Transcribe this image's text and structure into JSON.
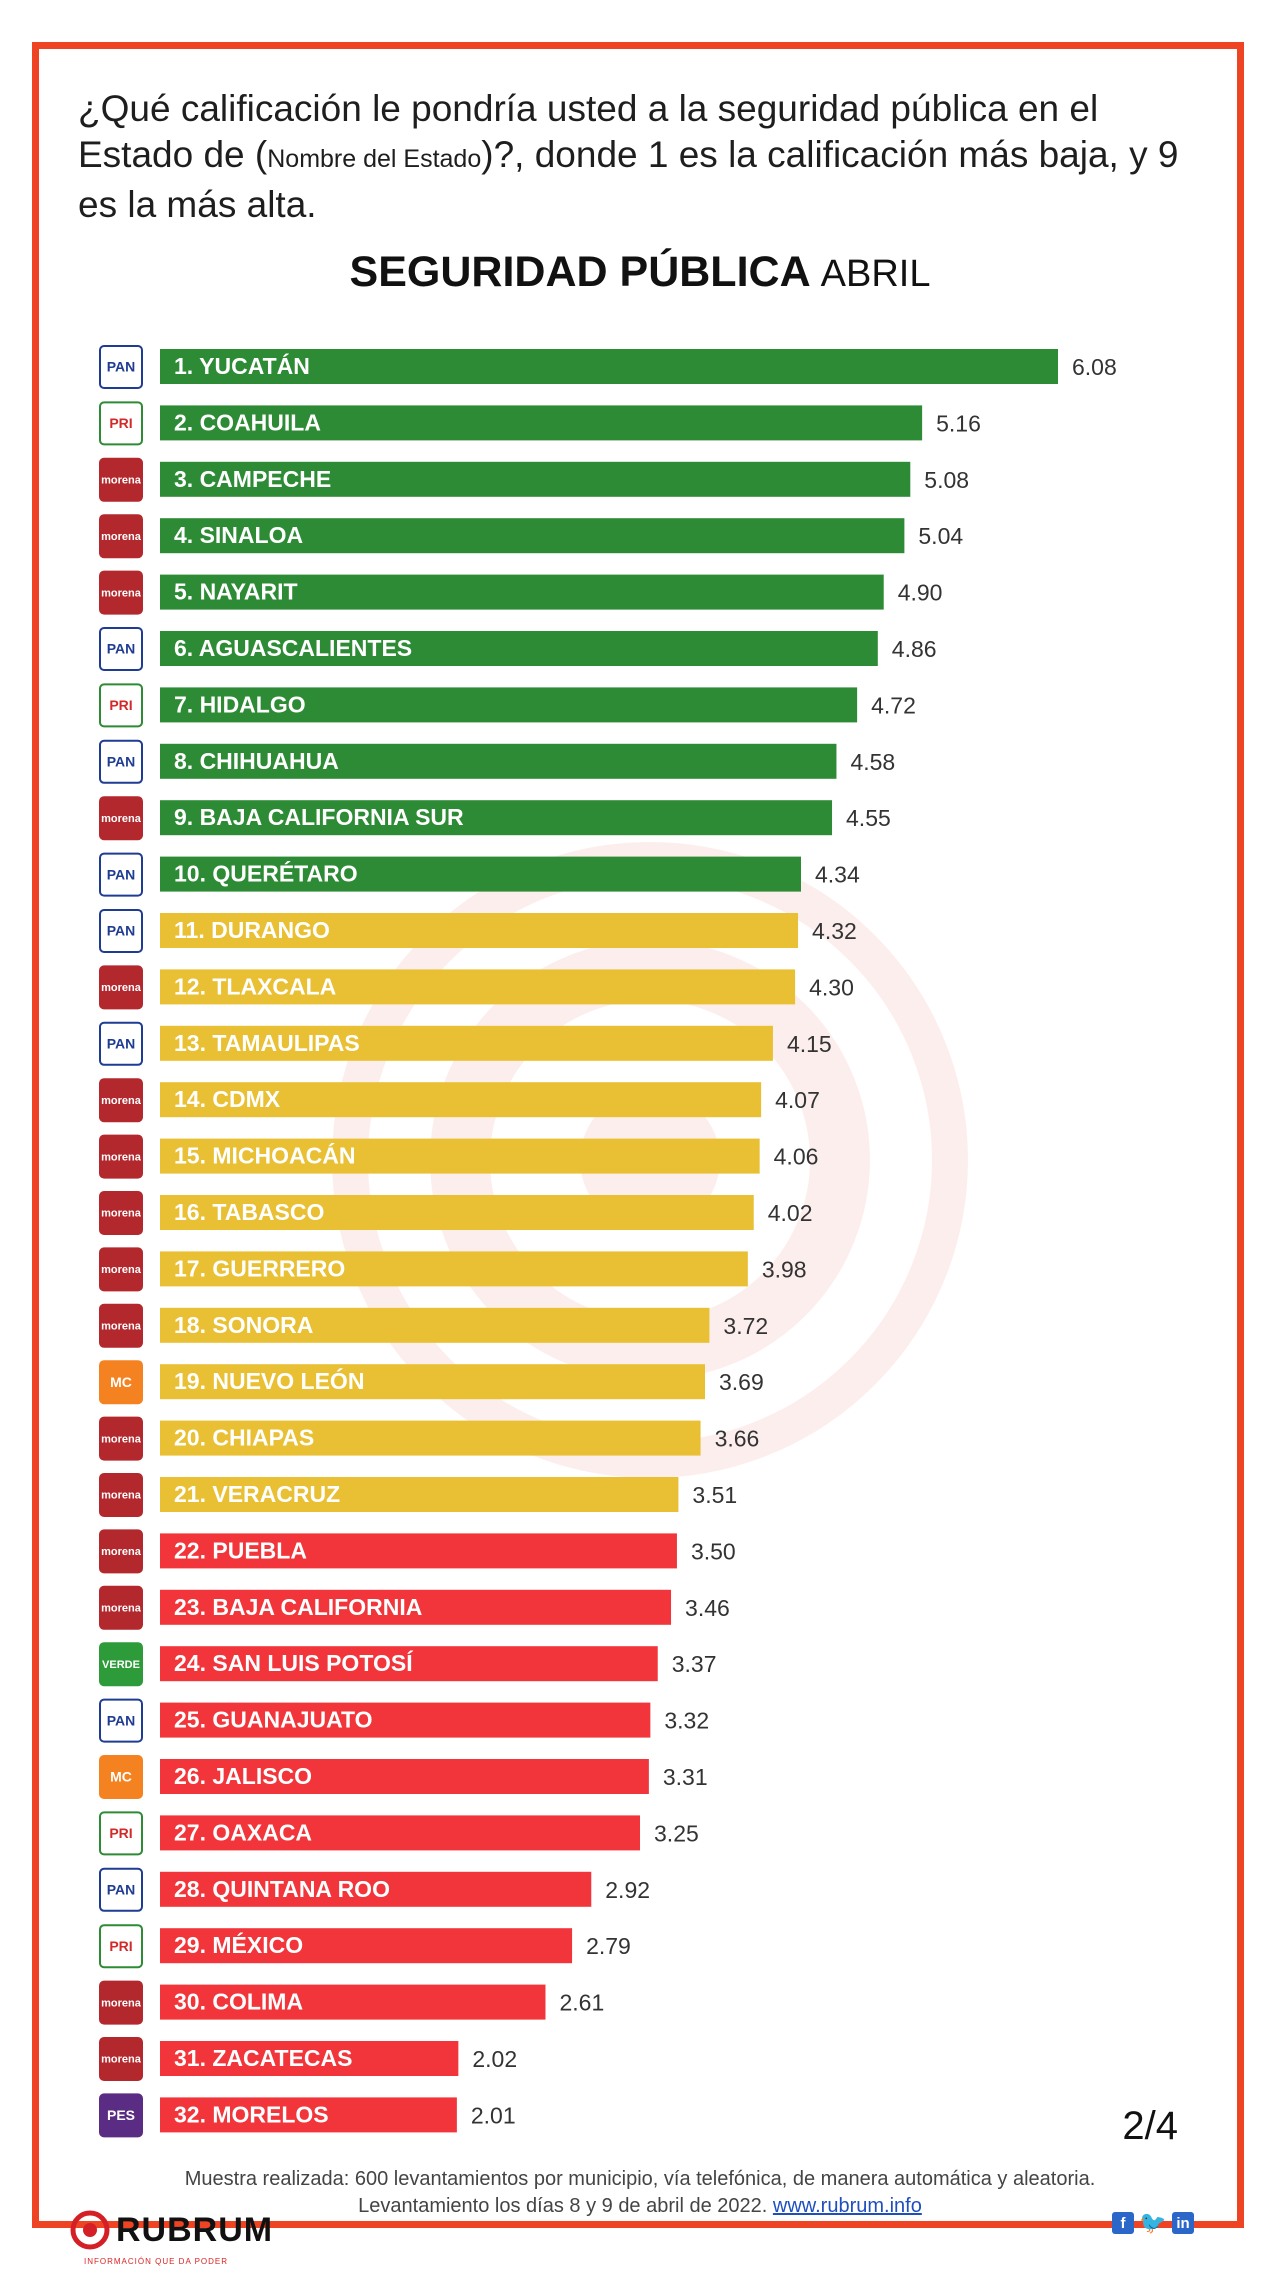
{
  "question": {
    "part1": "¿Qué calificación le pondría usted a la seguridad pública en el Estado de (",
    "small": "Nombre del Estado",
    "part2": ")?, donde 1 es la calificación más baja, y 9 es la más alta."
  },
  "title": {
    "bold": "SEGURIDAD PÚBLICA",
    "light": "ABRIL"
  },
  "colors": {
    "green": "#2e8b35",
    "yellow": "#e9c034",
    "red": "#f2353a",
    "frame": "#ee4423"
  },
  "party_badges": {
    "PAN": {
      "text": "PAN",
      "bg": "#ffffff",
      "fg": "#1f3c93",
      "border": "#1f3c93"
    },
    "PRI": {
      "text": "PRI",
      "bg": "#ffffff",
      "fg": "#d22a2a",
      "border": "#2e8b35"
    },
    "morena": {
      "text": "morena",
      "bg": "#b3282d",
      "fg": "#ffffff",
      "border": "#b3282d"
    },
    "MC": {
      "text": "MC",
      "bg": "#f58220",
      "fg": "#ffffff",
      "border": "#f58220"
    },
    "VERDE": {
      "text": "VERDE",
      "bg": "#2e9b3a",
      "fg": "#ffffff",
      "border": "#2e9b3a"
    },
    "PES": {
      "text": "PES",
      "bg": "#5b2c83",
      "fg": "#ffffff",
      "border": "#5b2c83"
    }
  },
  "chart_data": {
    "type": "bar",
    "orientation": "horizontal",
    "title": "SEGURIDAD PÚBLICA ABRIL",
    "xlim": [
      0,
      6.08
    ],
    "categories": [
      "1. YUCATÁN",
      "2. COAHUILA",
      "3. CAMPECHE",
      "4. SINALOA",
      "5. NAYARIT",
      "6. AGUASCALIENTES",
      "7. HIDALGO",
      "8. CHIHUAHUA",
      "9. BAJA CALIFORNIA SUR",
      "10. QUERÉTARO",
      "11. DURANGO",
      "12. TLAXCALA",
      "13. TAMAULIPAS",
      "14. CDMX",
      "15. MICHOACÁN",
      "16. TABASCO",
      "17. GUERRERO",
      "18. SONORA",
      "19. NUEVO LEÓN",
      "20. CHIAPAS",
      "21. VERACRUZ",
      "22. PUEBLA",
      "23. BAJA CALIFORNIA",
      "24. SAN LUIS POTOSÍ",
      "25. GUANAJUATO",
      "26. JALISCO",
      "27. OAXACA",
      "28. QUINTANA ROO",
      "29. MÉXICO",
      "30. COLIMA",
      "31. ZACATECAS",
      "32. MORELOS"
    ],
    "values": [
      6.08,
      5.16,
      5.08,
      5.04,
      4.9,
      4.86,
      4.72,
      4.58,
      4.55,
      4.34,
      4.32,
      4.3,
      4.15,
      4.07,
      4.06,
      4.02,
      3.98,
      3.72,
      3.69,
      3.66,
      3.51,
      3.5,
      3.46,
      3.37,
      3.32,
      3.31,
      3.25,
      2.92,
      2.79,
      2.61,
      2.02,
      2.01
    ],
    "value_labels": [
      "6.08",
      "5.16",
      "5.08",
      "5.04",
      "4.90",
      "4.86",
      "4.72",
      "4.58",
      "4.55",
      "4.34",
      "4.32",
      "4.30",
      "4.15",
      "4.07",
      "4.06",
      "4.02",
      "3.98",
      "3.72",
      "3.69",
      "3.66",
      "3.51",
      "3.50",
      "3.46",
      "3.37",
      "3.32",
      "3.31",
      "3.25",
      "2.92",
      "2.79",
      "2.61",
      "2.02",
      "2.01"
    ],
    "parties": [
      "PAN",
      "PRI",
      "morena",
      "morena",
      "morena",
      "PAN",
      "PRI",
      "PAN",
      "morena",
      "PAN",
      "PAN",
      "morena",
      "PAN",
      "morena",
      "morena",
      "morena",
      "morena",
      "morena",
      "MC",
      "morena",
      "morena",
      "morena",
      "morena",
      "VERDE",
      "PAN",
      "MC",
      "PRI",
      "PAN",
      "PRI",
      "morena",
      "morena",
      "PES"
    ],
    "color_groups": [
      "green",
      "green",
      "green",
      "green",
      "green",
      "green",
      "green",
      "green",
      "green",
      "green",
      "yellow",
      "yellow",
      "yellow",
      "yellow",
      "yellow",
      "yellow",
      "yellow",
      "yellow",
      "yellow",
      "yellow",
      "yellow",
      "red",
      "red",
      "red",
      "red",
      "red",
      "red",
      "red",
      "red",
      "red",
      "red",
      "red"
    ]
  },
  "page_number": "2/4",
  "footer": {
    "line1": "Muestra realizada: 600 levantamientos por municipio, vía telefónica, de manera automática y aleatoria.",
    "line2": "Levantamiento los días 8 y 9 de abril de 2022.",
    "link": "www.rubrum.info"
  },
  "brand": {
    "name": "RUBRUM",
    "tagline": "INFORMACIÓN QUE DA PODER"
  },
  "social": {
    "facebook": "f",
    "twitter": "🐦",
    "linkedin": "in"
  }
}
